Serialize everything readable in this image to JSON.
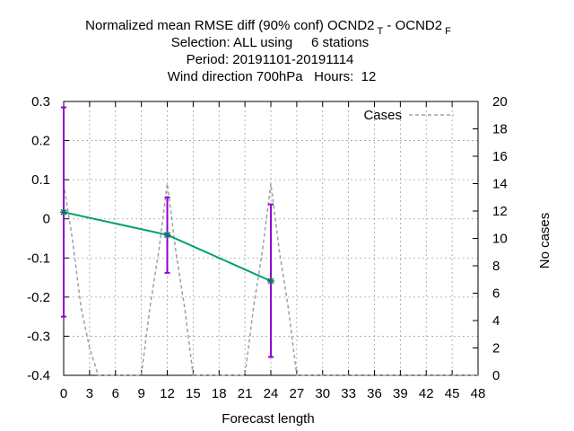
{
  "chart_data": {
    "type": "line",
    "title": {
      "line1_main": "Normalized mean RMSE diff (90% conf) OCND2",
      "line1_sub1": "T",
      "line1_mid": " - OCND2",
      "line1_sub2": "F",
      "line2": "Selection: ALL using     6 stations",
      "line3": "Period: 20191101-20191114",
      "line4": "Wind direction 700hPa   Hours:  12"
    },
    "xlabel": "Forecast length",
    "ylabel": "",
    "y2label": "No cases",
    "xlim": [
      0,
      48
    ],
    "ylim": [
      -0.4,
      0.3
    ],
    "y2lim": [
      0,
      20
    ],
    "x_ticks": [
      0,
      3,
      6,
      9,
      12,
      15,
      18,
      21,
      24,
      27,
      30,
      33,
      36,
      39,
      42,
      45,
      48
    ],
    "y_ticks": [
      -0.4,
      -0.3,
      -0.2,
      -0.1,
      0,
      0.1,
      0.2,
      0.3
    ],
    "y_tick_labels": [
      "-0.4",
      "-0.3",
      "-0.2",
      "-0.1",
      "0",
      "0.1",
      "0.2",
      "0.3"
    ],
    "y2_ticks": [
      0,
      2,
      4,
      6,
      8,
      10,
      12,
      14,
      16,
      18,
      20
    ],
    "grid": true,
    "legend": {
      "placement": "top-right",
      "entries": [
        "Cases"
      ]
    },
    "series": [
      {
        "role": "mean",
        "color": "#009e73",
        "x": [
          0,
          12,
          24
        ],
        "y": [
          0.017,
          -0.041,
          -0.159
        ],
        "err_low": [
          -0.25,
          -0.138,
          -0.353
        ],
        "err_high": [
          0.285,
          0.055,
          0.037
        ],
        "err_color": "#9400d3"
      },
      {
        "name": "Cases",
        "axis": "y2",
        "color": "#a0a0a4",
        "dash": "dashed",
        "x": [
          0,
          1,
          2,
          3,
          4,
          5,
          6,
          7,
          8,
          9,
          10,
          11,
          12,
          13,
          14,
          15,
          16,
          17,
          18,
          19,
          20,
          21,
          22,
          23,
          24,
          25,
          26,
          27,
          28,
          29,
          30,
          31,
          32,
          33,
          34,
          35,
          36,
          37,
          38,
          39,
          40,
          41,
          42,
          43,
          44,
          45,
          46,
          47,
          48
        ],
        "y": [
          14,
          10,
          5,
          2,
          0,
          0,
          0,
          0,
          0,
          0,
          5,
          9,
          14,
          9,
          5,
          0,
          0,
          0,
          0,
          0,
          0,
          0,
          5,
          9,
          14,
          9,
          5,
          0,
          0,
          0,
          0,
          0,
          0,
          0,
          0,
          0,
          0,
          0,
          0,
          0,
          0,
          0,
          0,
          0,
          0,
          0,
          0,
          0,
          0
        ]
      }
    ]
  }
}
